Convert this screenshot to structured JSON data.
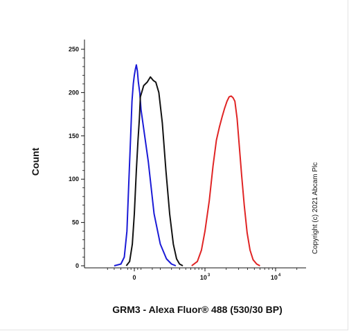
{
  "chart_data": {
    "type": "line",
    "xlabel": "GRM3 - Alexa Fluor® 488 (530/30 BP)",
    "ylabel": "Count",
    "ylim": [
      0,
      260
    ],
    "y_ticks": [
      0,
      50,
      100,
      150,
      200,
      250
    ],
    "x_scale": "biexponential",
    "x_ticks": [
      {
        "value": 0,
        "base": "0",
        "exponent": ""
      },
      {
        "value": 1000,
        "base": "10",
        "exponent": "3"
      },
      {
        "value": 10000,
        "base": "10",
        "exponent": "4"
      }
    ],
    "annotation": "Copyright (c) 2021 Abcam Plc",
    "series": [
      {
        "color": "#1a1ad6",
        "points": [
          [
            -300,
            0
          ],
          [
            -200,
            2
          ],
          [
            -150,
            10
          ],
          [
            -110,
            40
          ],
          [
            -80,
            100
          ],
          [
            -55,
            150
          ],
          [
            -35,
            190
          ],
          [
            -15,
            210
          ],
          [
            0,
            220
          ],
          [
            15,
            227
          ],
          [
            30,
            232
          ],
          [
            45,
            225
          ],
          [
            60,
            212
          ],
          [
            80,
            200
          ],
          [
            100,
            180
          ],
          [
            130,
            120
          ],
          [
            160,
            60
          ],
          [
            200,
            25
          ],
          [
            250,
            8
          ],
          [
            300,
            2
          ],
          [
            350,
            0
          ]
        ]
      },
      {
        "color": "#111111",
        "points": [
          [
            -120,
            0
          ],
          [
            -70,
            5
          ],
          [
            -30,
            25
          ],
          [
            0,
            60
          ],
          [
            30,
            110
          ],
          [
            55,
            145
          ],
          [
            75,
            170
          ],
          [
            90,
            195
          ],
          [
            110,
            208
          ],
          [
            125,
            212
          ],
          [
            140,
            218
          ],
          [
            155,
            214
          ],
          [
            170,
            212
          ],
          [
            190,
            200
          ],
          [
            215,
            165
          ],
          [
            245,
            110
          ],
          [
            280,
            60
          ],
          [
            320,
            25
          ],
          [
            360,
            8
          ],
          [
            400,
            2
          ],
          [
            450,
            0
          ]
        ]
      },
      {
        "color": "#e02424",
        "points": [
          [
            620,
            0
          ],
          [
            760,
            5
          ],
          [
            880,
            18
          ],
          [
            1000,
            40
          ],
          [
            1150,
            75
          ],
          [
            1300,
            115
          ],
          [
            1450,
            145
          ],
          [
            1600,
            160
          ],
          [
            1750,
            172
          ],
          [
            1900,
            182
          ],
          [
            2050,
            190
          ],
          [
            2200,
            195
          ],
          [
            2350,
            196
          ],
          [
            2500,
            194
          ],
          [
            2650,
            190
          ],
          [
            2850,
            170
          ],
          [
            3050,
            140
          ],
          [
            3300,
            105
          ],
          [
            3600,
            70
          ],
          [
            3950,
            38
          ],
          [
            4350,
            18
          ],
          [
            4800,
            7
          ],
          [
            5400,
            2
          ],
          [
            6000,
            0
          ]
        ]
      }
    ]
  }
}
